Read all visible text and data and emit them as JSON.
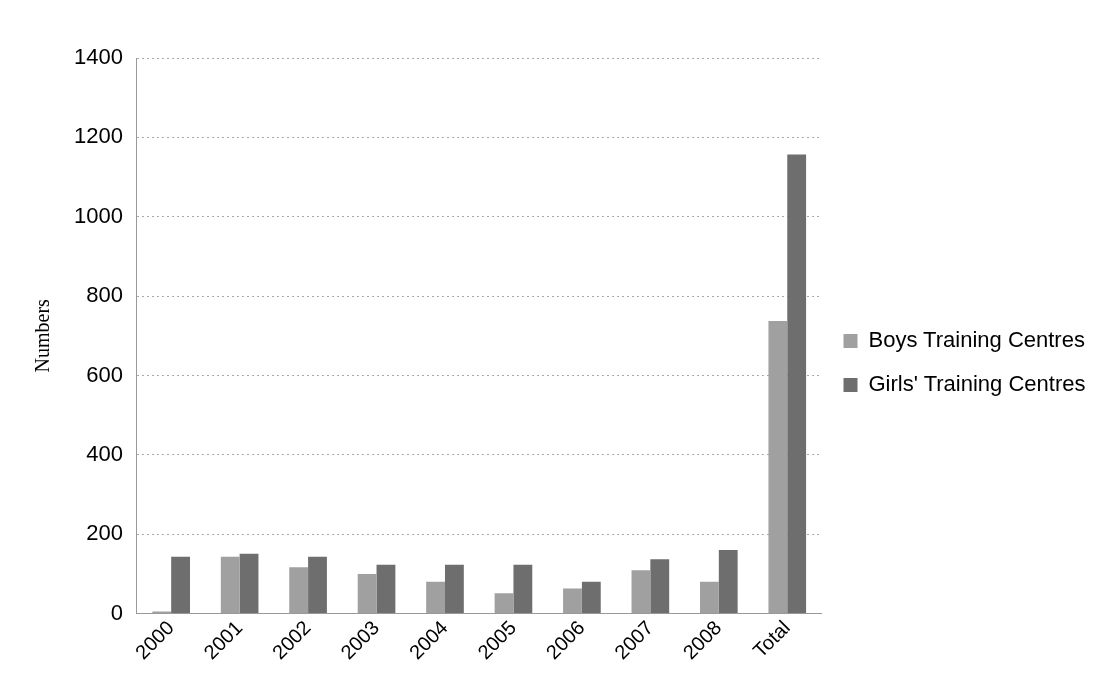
{
  "chart_data": {
    "type": "bar",
    "ylabel": "Numbers",
    "categories": [
      "2000",
      "2001",
      "2002",
      "2003",
      "2004",
      "2005",
      "2006",
      "2007",
      "2008",
      "Total"
    ],
    "series": [
      {
        "name": "Boys Training Centres",
        "color": "#a0a0a0",
        "values": [
          5,
          143,
          117,
          100,
          80,
          51,
          63,
          109,
          80,
          737
        ]
      },
      {
        "name": "Girls' Training Centres",
        "color": "#6e6e6e",
        "values": [
          143,
          151,
          143,
          123,
          123,
          123,
          80,
          137,
          160,
          1157
        ]
      }
    ],
    "ylim": [
      0,
      1400
    ],
    "yticks": [
      0,
      200,
      400,
      600,
      800,
      1000,
      1200,
      1400
    ],
    "grid": "y",
    "legend": "right"
  }
}
